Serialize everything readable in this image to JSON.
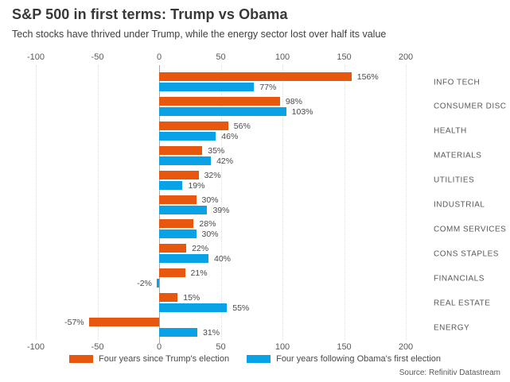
{
  "title": "S&P 500 in first terms: Trump vs Obama",
  "subtitle": "Tech stocks have thrived under Trump, while the energy sector lost over half its value",
  "source": "Source: Refinitiv Datastream",
  "legend": {
    "trump": "Four years since Trump's election",
    "obama": "Four years following Obama's first election"
  },
  "colors": {
    "trump_orange": "#e8570e",
    "obama_blue": "#0aa2e6",
    "zero_line": "#a8a8a8",
    "gridline": "#dcdcdc",
    "text_dark": "#383838",
    "text_gray": "#595959"
  },
  "chart_data": {
    "type": "bar",
    "orientation": "horizontal",
    "title": "S&P 500 in first terms: Trump vs Obama",
    "subtitle": "Tech stocks have thrived under Trump, while the energy sector lost over half its value",
    "categories": [
      "INFO TECH",
      "CONSUMER DISC",
      "HEALTH",
      "MATERIALS",
      "UTILITIES",
      "INDUSTRIAL",
      "COMM SERVICES",
      "CONS STAPLES",
      "FINANCIALS",
      "REAL ESTATE",
      "ENERGY"
    ],
    "series": [
      {
        "name": "Four years since Trump's election",
        "color_key": "trump_orange",
        "values": [
          156,
          98,
          56,
          35,
          32,
          30,
          28,
          22,
          21,
          15,
          -57
        ]
      },
      {
        "name": "Four years following Obama's first election",
        "color_key": "obama_blue",
        "values": [
          77,
          103,
          46,
          42,
          19,
          39,
          30,
          40,
          -2,
          55,
          31
        ]
      }
    ],
    "value_suffix": "%",
    "axis_ticks": [
      -100,
      -50,
      0,
      50,
      100,
      150,
      200
    ],
    "xlim": [
      -100,
      200
    ],
    "grid": "vertical dotted lines at 50-unit ticks, solid line at zero",
    "axis_position": "top and bottom",
    "legend_position": "bottom center"
  }
}
